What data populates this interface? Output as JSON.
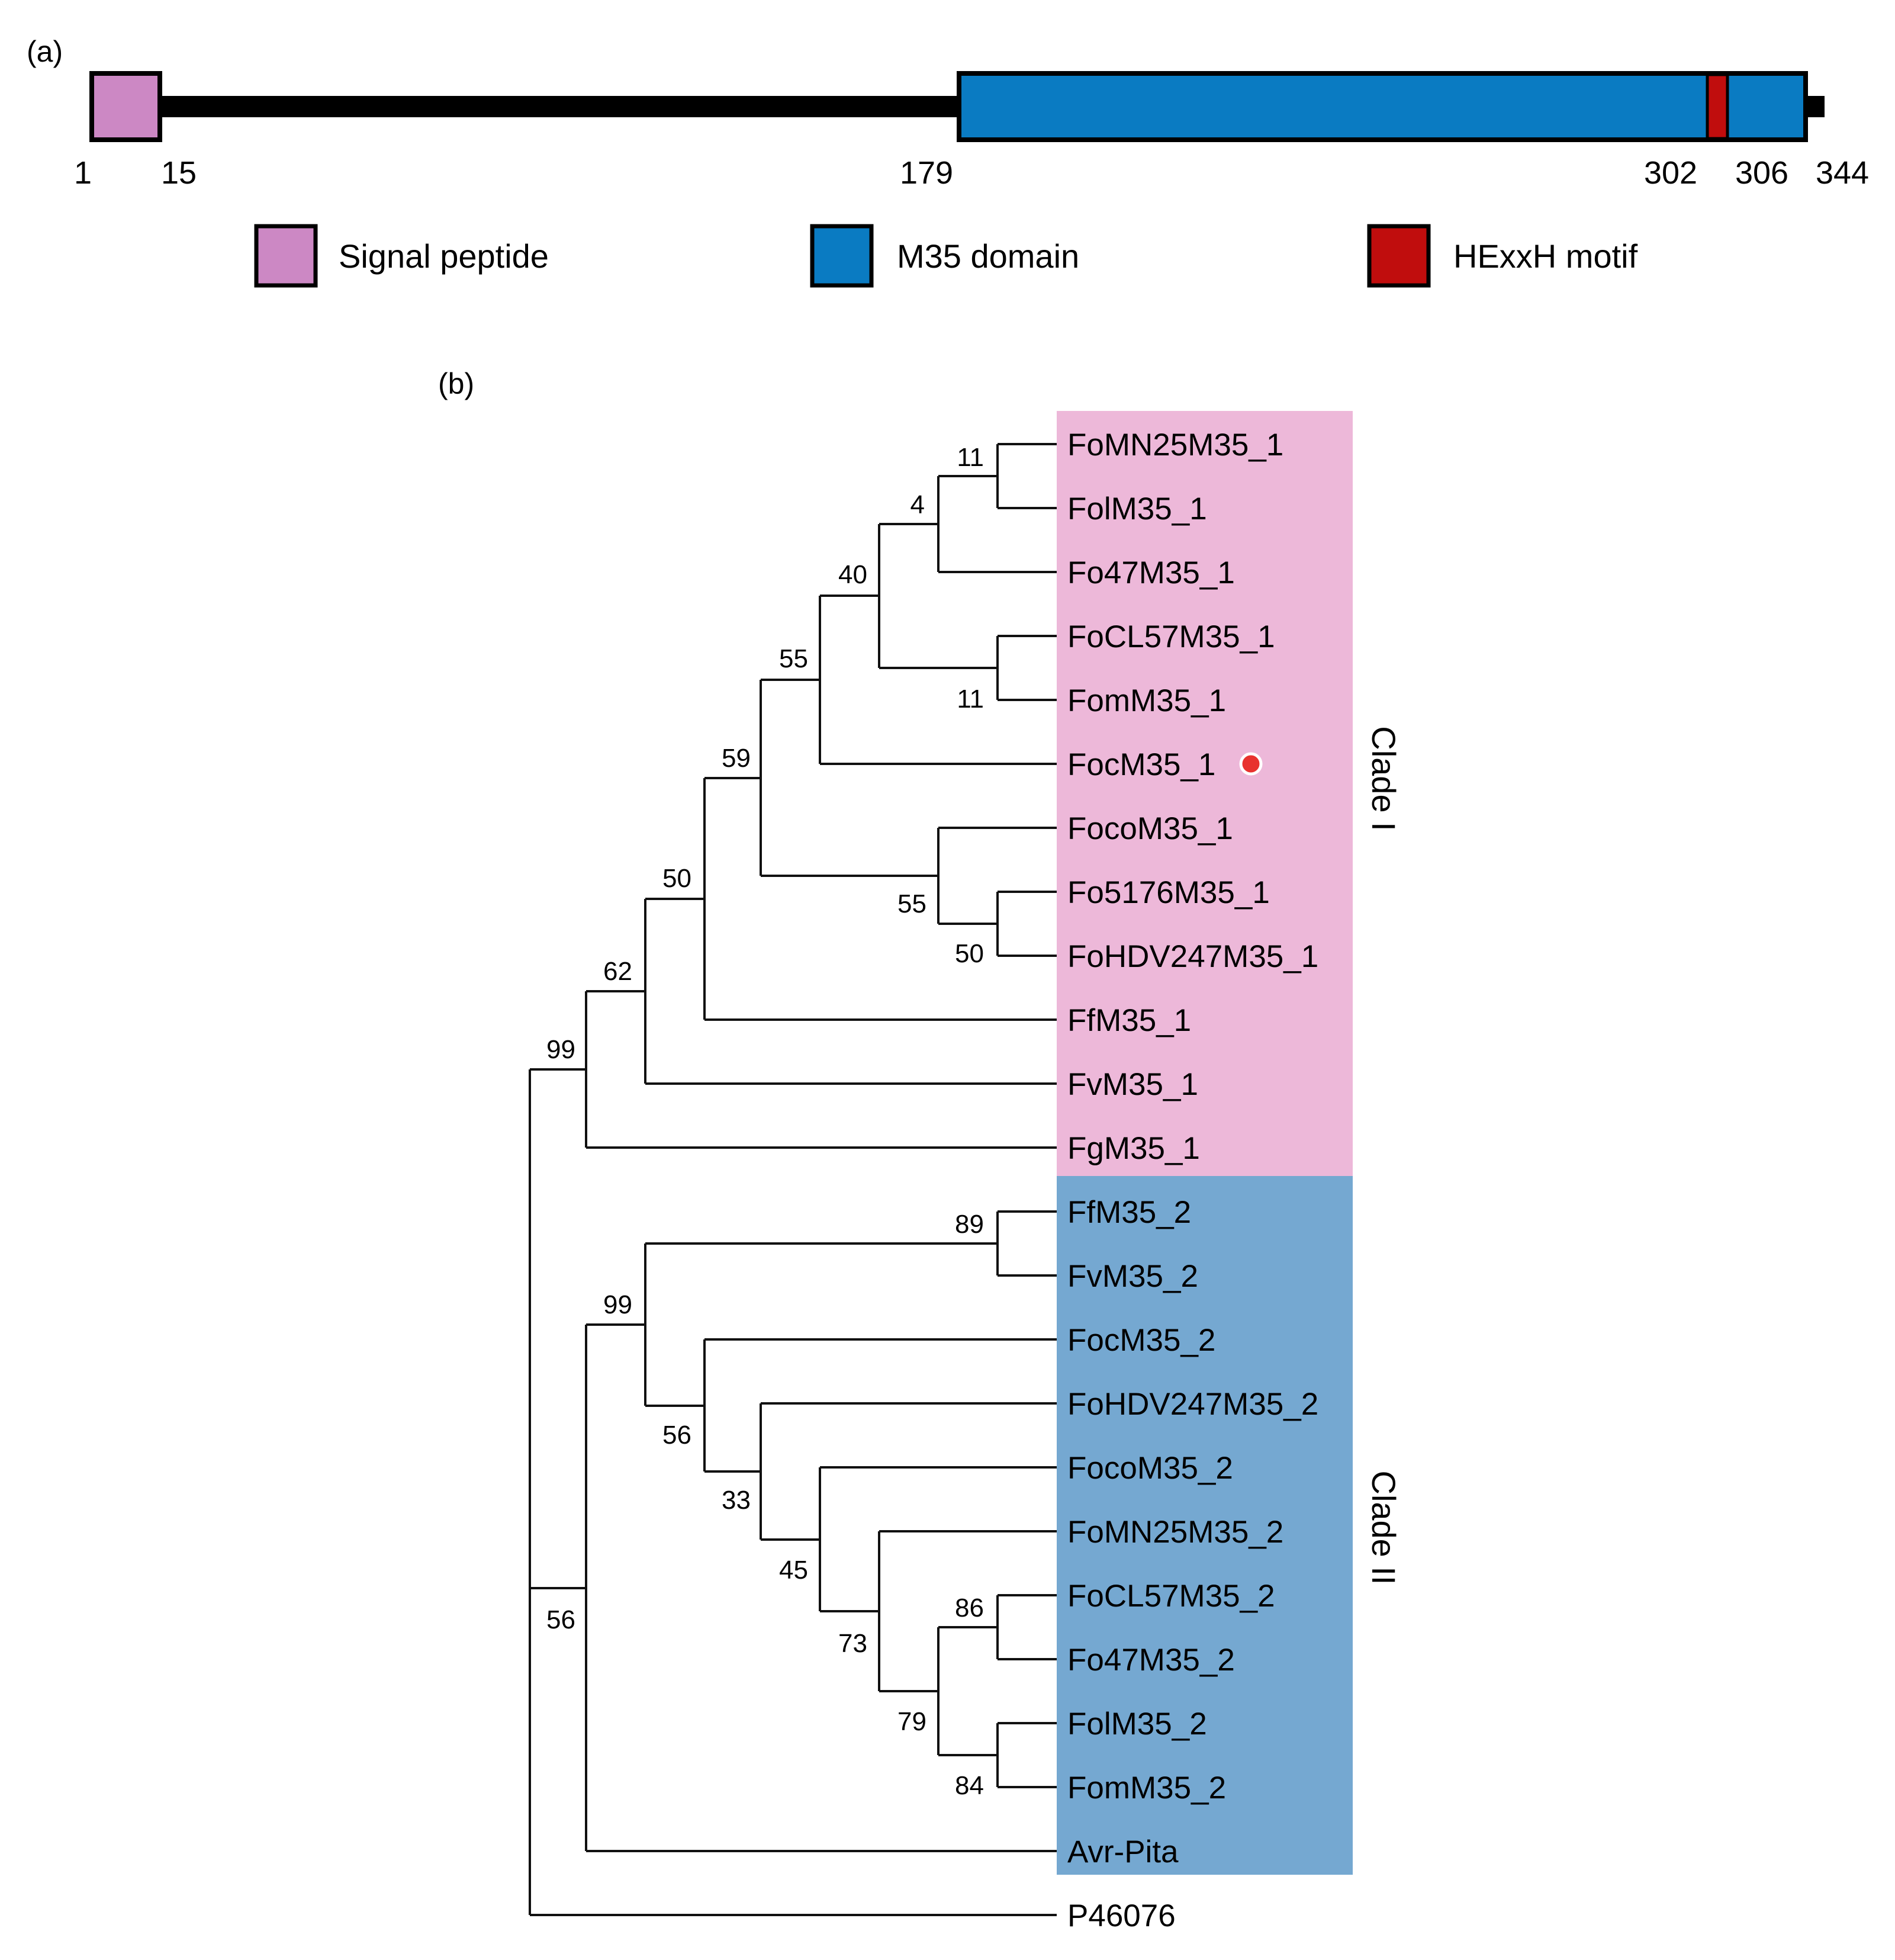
{
  "panel_a": {
    "label": "(a)",
    "protein_length": 344,
    "positions": [
      "1",
      "15",
      "179",
      "302",
      "306",
      "344"
    ],
    "domains": [
      {
        "name": "Signal peptide",
        "start": 1,
        "end": 15,
        "color": "#cc88c4"
      },
      {
        "name": "M35 domain",
        "start": 179,
        "end": 344,
        "color": "#0a7bc2"
      },
      {
        "name": "HExxH motif",
        "start": 302,
        "end": 306,
        "color": "#c00d0d"
      }
    ],
    "legend": [
      {
        "label": "Signal peptide",
        "color": "#cc88c4"
      },
      {
        "label": "M35 domain",
        "color": "#0a7bc2"
      },
      {
        "label": "HExxH motif",
        "color": "#c00d0d"
      }
    ]
  },
  "panel_b": {
    "label": "(b)",
    "clades": [
      {
        "name": "Clade I",
        "color": "#edb8d9"
      },
      {
        "name": "Clade II",
        "color": "#75a8d1"
      }
    ],
    "taxa": [
      "FoMN25M35_1",
      "FolM35_1",
      "Fo47M35_1",
      "FoCL57M35_1",
      "FomM35_1",
      "FocM35_1",
      "FocoM35_1",
      "Fo5176M35_1",
      "FoHDV247M35_1",
      "FfM35_1",
      "FvM35_1",
      "FgM35_1",
      "FfM35_2",
      "FvM35_2",
      "FocM35_2",
      "FoHDV247M35_2",
      "FocoM35_2",
      "FoMN25M35_2",
      "FoCL57M35_2",
      "Fo47M35_2",
      "FolM35_2",
      "FomM35_2",
      "Avr-Pita",
      "P46076"
    ],
    "highlighted_taxon": "FocM35_1",
    "highlight_color": "#e8322e",
    "bootstrap_values": [
      "11",
      "4",
      "40",
      "11",
      "55",
      "59",
      "55",
      "50",
      "50",
      "62",
      "99",
      "89",
      "99",
      "56",
      "33",
      "45",
      "73",
      "86",
      "79",
      "84",
      "56"
    ]
  }
}
